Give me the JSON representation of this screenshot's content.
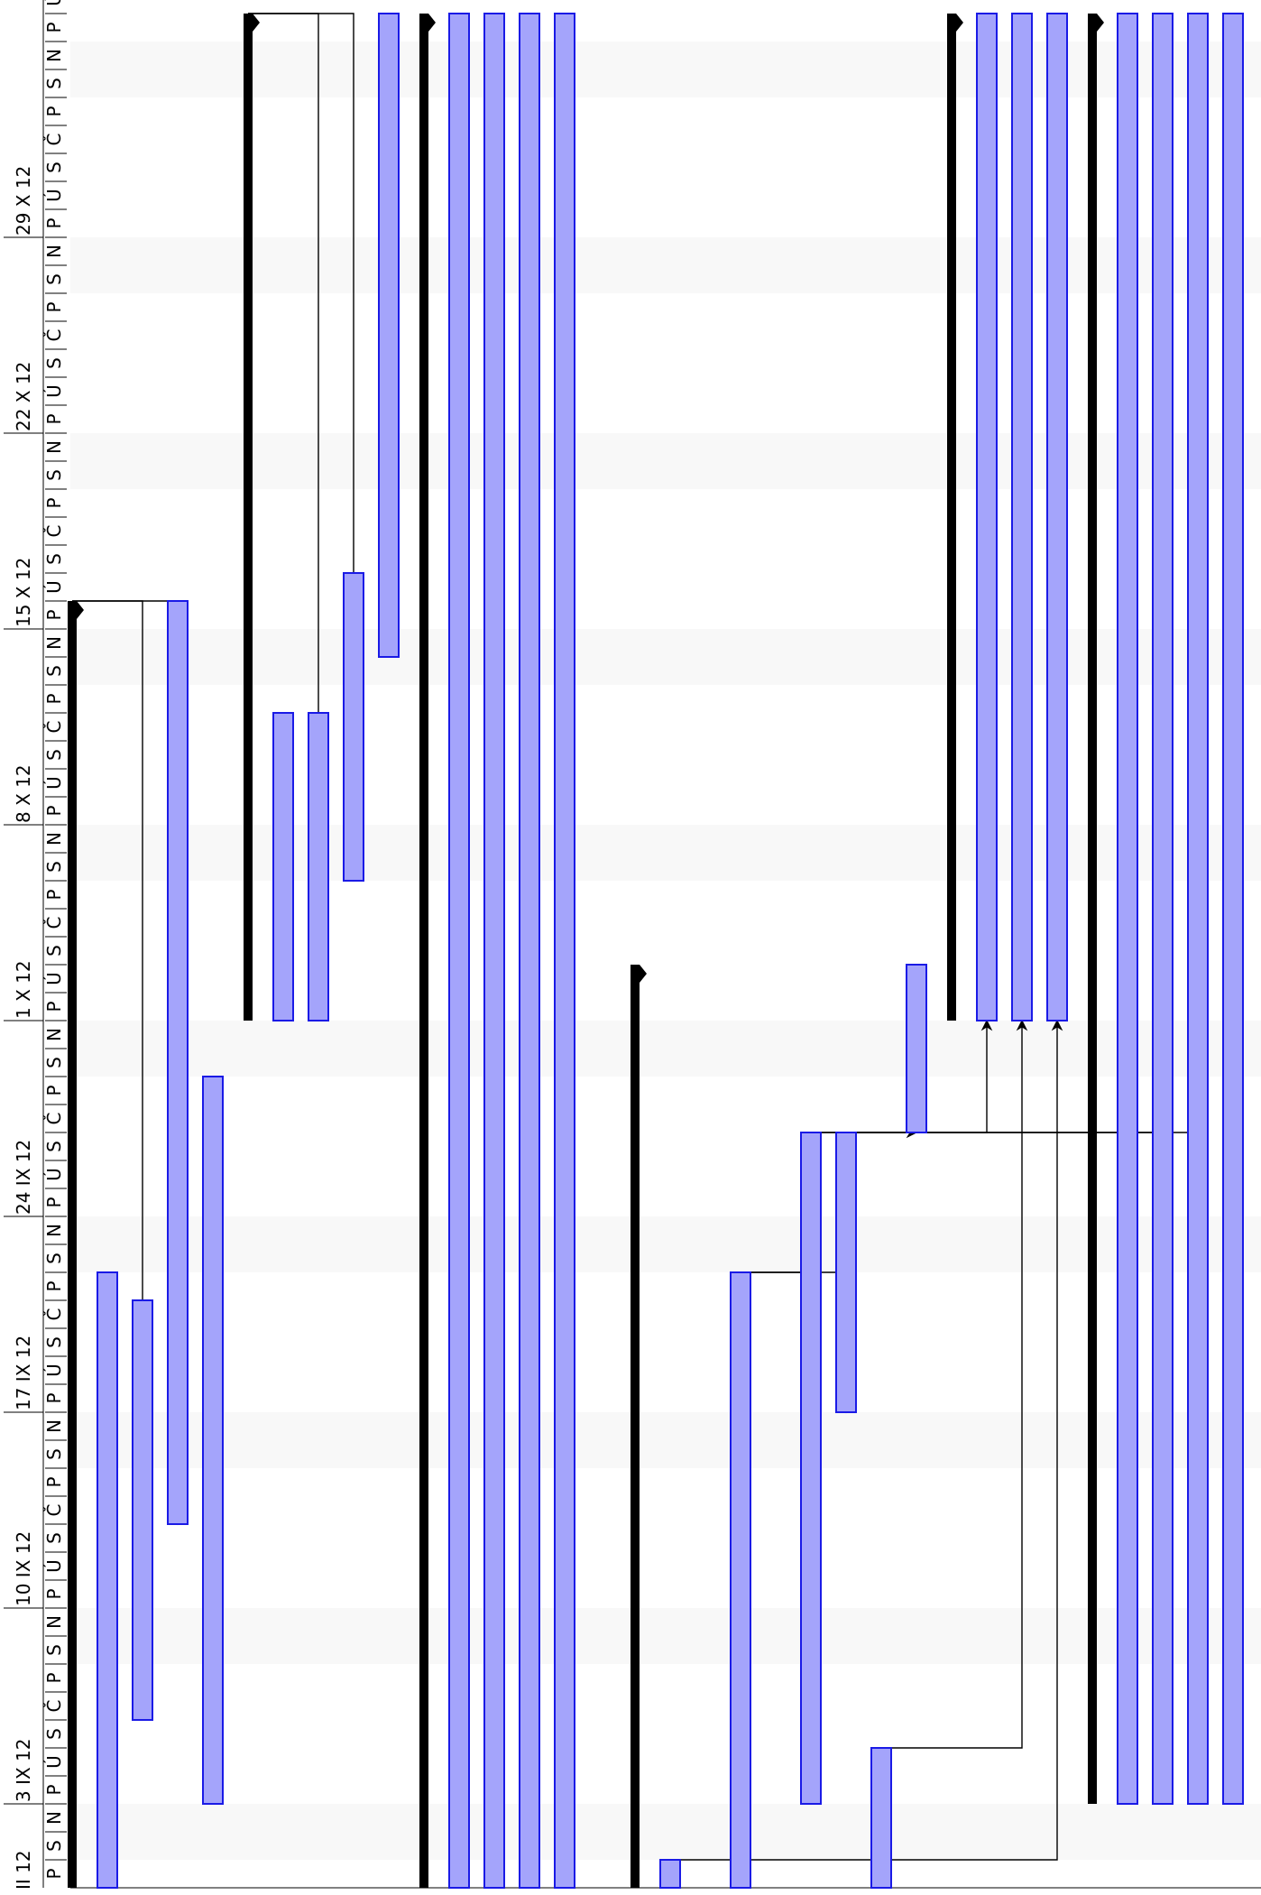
{
  "chart_data": {
    "type": "gantt",
    "orientation": "rotated-time-axis-vertical",
    "time_axis": {
      "start_date": "2012-08-31",
      "end_date": "2012-11-05",
      "direction": "bottom-to-top",
      "week_labels": [
        {
          "date": "2012-09-03",
          "text": "3 IX 12"
        },
        {
          "date": "2012-09-10",
          "text": "10 IX 12"
        },
        {
          "date": "2012-09-17",
          "text": "17 IX 12"
        },
        {
          "date": "2012-09-24",
          "text": "24 IX 12"
        },
        {
          "date": "2012-10-01",
          "text": "1 X 12"
        },
        {
          "date": "2012-10-08",
          "text": "8 X 12"
        },
        {
          "date": "2012-10-15",
          "text": "15 X 12"
        },
        {
          "date": "2012-10-22",
          "text": "22 X 12"
        },
        {
          "date": "2012-10-29",
          "text": "29 X 12"
        }
      ],
      "partial_label": {
        "date": "2012-08-31",
        "text": "II 12"
      },
      "day_letters": [
        "P",
        "Ú",
        "S",
        "Č",
        "P",
        "S",
        "N"
      ]
    },
    "colors": {
      "task_fill": "#a4a4fb",
      "task_stroke": "#1a1ae6",
      "summary": "#000000",
      "weekend": "#f8f8f8",
      "link": "#000000"
    },
    "tasks": [
      {
        "id": "S1",
        "kind": "summary",
        "row": 0,
        "start": "2012-08-31",
        "end": "2012-10-15"
      },
      {
        "id": "T1",
        "kind": "task",
        "row": 1,
        "start": "2012-08-31",
        "end": "2012-09-21"
      },
      {
        "id": "T2",
        "kind": "task",
        "row": 2,
        "start": "2012-09-06",
        "end": "2012-09-20"
      },
      {
        "id": "T3",
        "kind": "task",
        "row": 3,
        "start": "2012-09-13",
        "end": "2012-10-15"
      },
      {
        "id": "T4",
        "kind": "task",
        "row": 4,
        "start": "2012-09-03",
        "end": "2012-09-28"
      },
      {
        "id": "S2",
        "kind": "summary",
        "row": 5,
        "start": "2012-10-01",
        "end": "2012-11-05"
      },
      {
        "id": "T5",
        "kind": "task",
        "row": 6,
        "start": "2012-10-01",
        "end": "2012-10-11"
      },
      {
        "id": "T6",
        "kind": "task",
        "row": 7,
        "start": "2012-10-01",
        "end": "2012-10-11"
      },
      {
        "id": "T7",
        "kind": "task",
        "row": 8,
        "start": "2012-10-06",
        "end": "2012-10-16"
      },
      {
        "id": "T8",
        "kind": "task",
        "row": 9,
        "start": "2012-10-14",
        "end": "2012-11-05"
      },
      {
        "id": "S3",
        "kind": "summary",
        "row": 10,
        "start": "2012-08-31",
        "end": "2012-11-05"
      },
      {
        "id": "T9",
        "kind": "task",
        "row": 11,
        "start": "2012-08-31",
        "end": "2012-11-05"
      },
      {
        "id": "T10",
        "kind": "task",
        "row": 12,
        "start": "2012-08-31",
        "end": "2012-11-05"
      },
      {
        "id": "T11",
        "kind": "task",
        "row": 13,
        "start": "2012-08-31",
        "end": "2012-11-05"
      },
      {
        "id": "T12",
        "kind": "task",
        "row": 14,
        "start": "2012-08-31",
        "end": "2012-11-05"
      },
      {
        "id": "S4",
        "kind": "summary",
        "row": 16,
        "start": "2012-08-31",
        "end": "2012-10-02"
      },
      {
        "id": "T13",
        "kind": "task",
        "row": 17,
        "start": "2012-08-31",
        "end": "2012-08-31"
      },
      {
        "id": "T14",
        "kind": "task",
        "row": 19,
        "start": "2012-08-31",
        "end": "2012-09-21"
      },
      {
        "id": "T15",
        "kind": "task",
        "row": 21,
        "start": "2012-09-03",
        "end": "2012-09-26"
      },
      {
        "id": "T16",
        "kind": "task",
        "row": 22,
        "start": "2012-09-17",
        "end": "2012-09-26"
      },
      {
        "id": "T17",
        "kind": "task",
        "row": 23,
        "start": "2012-08-31",
        "end": "2012-09-04"
      },
      {
        "id": "T18",
        "kind": "task",
        "row": 24,
        "start": "2012-09-27",
        "end": "2012-10-02"
      },
      {
        "id": "S5",
        "kind": "summary",
        "row": 25,
        "start": "2012-10-01",
        "end": "2012-11-05"
      },
      {
        "id": "T19",
        "kind": "task",
        "row": 26,
        "start": "2012-10-01",
        "end": "2012-11-05"
      },
      {
        "id": "T20",
        "kind": "task",
        "row": 27,
        "start": "2012-10-01",
        "end": "2012-11-05"
      },
      {
        "id": "T21",
        "kind": "task",
        "row": 28,
        "start": "2012-10-01",
        "end": "2012-11-05"
      },
      {
        "id": "S6",
        "kind": "summary",
        "row": 29,
        "start": "2012-09-03",
        "end": "2012-11-05"
      },
      {
        "id": "T22",
        "kind": "task",
        "row": 30,
        "start": "2012-09-03",
        "end": "2012-11-05"
      },
      {
        "id": "T23",
        "kind": "task",
        "row": 31,
        "start": "2012-09-03",
        "end": "2012-11-05"
      },
      {
        "id": "T24",
        "kind": "task",
        "row": 32,
        "start": "2012-09-03",
        "end": "2012-11-05"
      },
      {
        "id": "T25",
        "kind": "task",
        "row": 33,
        "start": "2012-09-03",
        "end": "2012-11-05"
      }
    ],
    "links": [
      {
        "from": "S1",
        "to": "T3"
      },
      {
        "from": "S1",
        "to": "T2"
      },
      {
        "from": "S2",
        "to": "T6"
      },
      {
        "from": "S2",
        "to": "T7"
      },
      {
        "from": "T15",
        "to": "T19"
      },
      {
        "from": "T16",
        "to": "T18"
      },
      {
        "from": "T17",
        "to": "T20"
      },
      {
        "from": "T13",
        "to": "T21"
      },
      {
        "from": "T14",
        "to": "T15"
      },
      {
        "from": "T14",
        "to": "T16"
      },
      {
        "from": "T15",
        "to": "T23"
      },
      {
        "from": "T16",
        "to": "T24"
      }
    ]
  }
}
